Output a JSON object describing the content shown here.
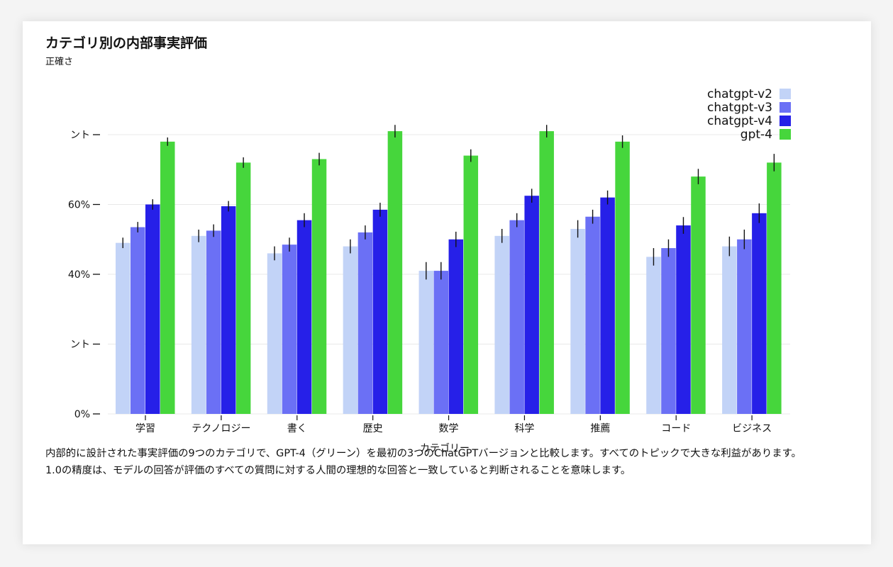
{
  "chart_data": {
    "type": "bar",
    "title": "カテゴリ別の内部事実評価",
    "ylabel": "正確さ",
    "xlabel": "カテゴリー",
    "ylim": [
      0,
      0.8
    ],
    "y_ticks": [
      {
        "value": 0,
        "label": "0%"
      },
      {
        "value": 0.2,
        "label": "ント"
      },
      {
        "value": 0.4,
        "label": "40%"
      },
      {
        "value": 0.6,
        "label": "60%"
      },
      {
        "value": 0.8,
        "label": "ント"
      }
    ],
    "categories": [
      "学習",
      "テクノロジー",
      "書く",
      "歴史",
      "数学",
      "科学",
      "推薦",
      "コード",
      "ビジネス"
    ],
    "series": [
      {
        "name": "chatgpt-v2",
        "color": "#c2d3f7",
        "values": [
          0.49,
          0.51,
          0.46,
          0.48,
          0.41,
          0.51,
          0.53,
          0.45,
          0.48
        ],
        "errors": [
          0.015,
          0.018,
          0.02,
          0.02,
          0.025,
          0.02,
          0.025,
          0.025,
          0.028
        ]
      },
      {
        "name": "chatgpt-v3",
        "color": "#6b70f5",
        "values": [
          0.535,
          0.525,
          0.485,
          0.52,
          0.41,
          0.555,
          0.565,
          0.475,
          0.5
        ],
        "errors": [
          0.015,
          0.018,
          0.02,
          0.02,
          0.025,
          0.02,
          0.02,
          0.025,
          0.028
        ]
      },
      {
        "name": "chatgpt-v4",
        "color": "#2620e8",
        "values": [
          0.6,
          0.595,
          0.555,
          0.585,
          0.5,
          0.625,
          0.62,
          0.54,
          0.575
        ],
        "errors": [
          0.015,
          0.015,
          0.02,
          0.02,
          0.022,
          0.02,
          0.02,
          0.024,
          0.028
        ]
      },
      {
        "name": "gpt-4",
        "color": "#46d63c",
        "values": [
          0.78,
          0.72,
          0.73,
          0.81,
          0.74,
          0.81,
          0.78,
          0.68,
          0.72
        ],
        "errors": [
          0.012,
          0.015,
          0.018,
          0.018,
          0.018,
          0.018,
          0.018,
          0.022,
          0.025
        ]
      }
    ],
    "grid": true,
    "legend": "top-right"
  },
  "caption": "内部的に設計された事実評価の9つのカテゴリで、GPT-4（グリーン）を最初の3つのChatGPTバージョンと比較します。すべてのトピックで大きな利益があります。1.0の精度は、モデルの回答が評価のすべての質問に対する人間の理想的な回答と一致していると判断されることを意味します。"
}
